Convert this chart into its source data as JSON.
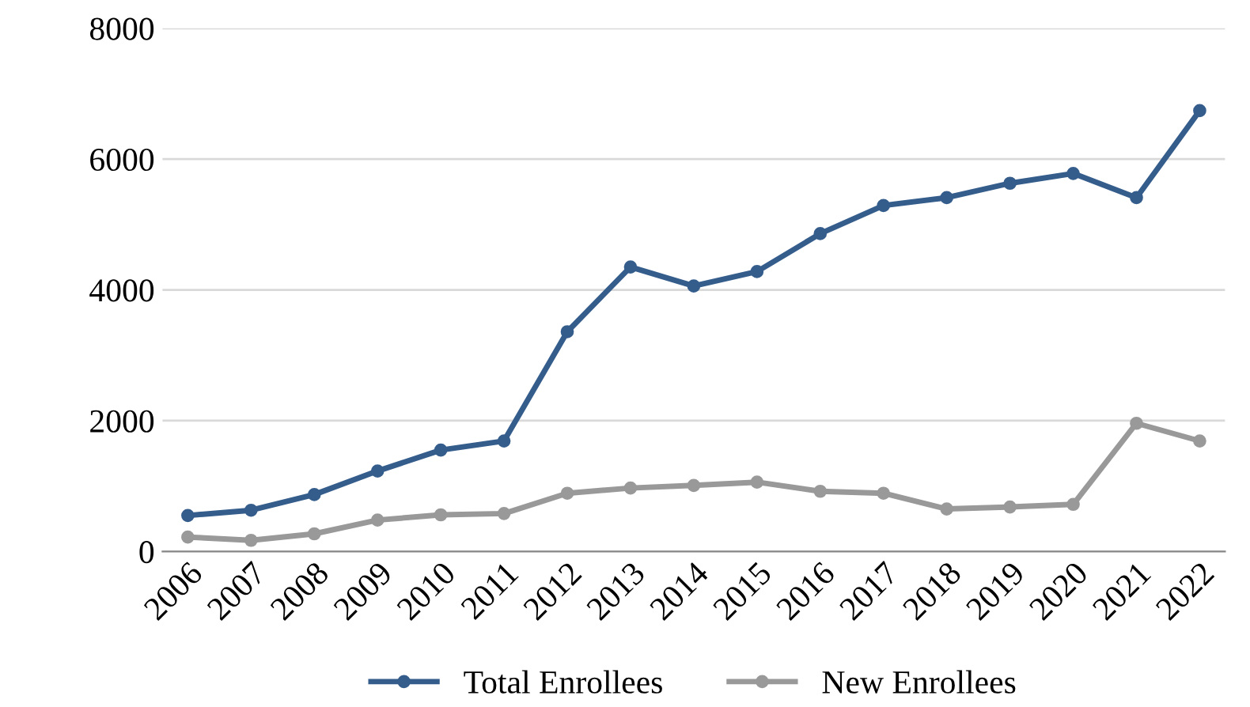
{
  "chart_data": {
    "type": "line",
    "categories": [
      "2006",
      "2007",
      "2008",
      "2009",
      "2010",
      "2011",
      "2012",
      "2013",
      "2014",
      "2015",
      "2016",
      "2017",
      "2018",
      "2019",
      "2020",
      "2021",
      "2022"
    ],
    "series": [
      {
        "name": "Total Enrollees",
        "color": "#355d8c",
        "values": [
          550,
          630,
          870,
          1230,
          1550,
          1690,
          3360,
          4350,
          4060,
          4280,
          4860,
          5290,
          5410,
          5630,
          5780,
          5410,
          6740
        ]
      },
      {
        "name": "New Enrollees",
        "color": "#999999",
        "values": [
          220,
          170,
          270,
          480,
          560,
          580,
          890,
          970,
          1010,
          1060,
          920,
          890,
          650,
          680,
          720,
          1960,
          1690
        ]
      }
    ],
    "ylim": [
      0,
      8000
    ],
    "yticks": [
      0,
      2000,
      4000,
      6000,
      8000
    ],
    "grid": "y",
    "legend": "bottom",
    "marker": "circle",
    "line_style": "solid"
  }
}
